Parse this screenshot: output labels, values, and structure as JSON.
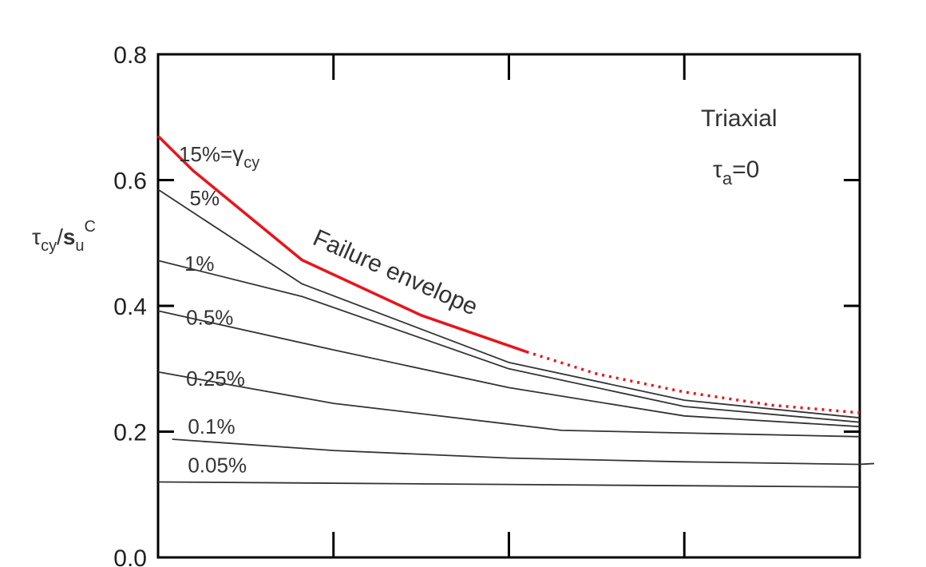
{
  "chart_data": {
    "type": "line",
    "title": "",
    "ylim": [
      0.0,
      0.8
    ],
    "y_ticks": [
      0.0,
      0.2,
      0.4,
      0.6,
      0.8
    ],
    "y_tick_labels": [
      "0.0",
      "0.2",
      "0.4",
      "0.6",
      "0.8"
    ],
    "xlim": [
      0,
      4
    ],
    "x_ticks_unlabeled": [
      1,
      2,
      3
    ],
    "grid": false,
    "ylabel": {
      "main": "τ",
      "sub": "cy",
      "mid": "/",
      "main2": "s",
      "sub2": "u",
      "sup2": "C"
    },
    "annotations": {
      "triaxial": "Triaxial",
      "tau_a": {
        "main": "τ",
        "sub": "a",
        "rest": "=0"
      },
      "failure_envelope": "Failure envelope",
      "gamma_label": {
        "prefix": "15%=",
        "main": "γ",
        "sub": "cy"
      }
    },
    "colors": {
      "envelope": "#e8141c",
      "curves": "#333333",
      "axes": "#000000"
    },
    "series": [
      {
        "name": "5%",
        "x": [
          0,
          0.82,
          2.0,
          3.0,
          4.0
        ],
        "y": [
          0.585,
          0.435,
          0.31,
          0.25,
          0.222
        ]
      },
      {
        "name": "1%",
        "x": [
          0,
          0.82,
          2.0,
          3.0,
          4.0
        ],
        "y": [
          0.472,
          0.415,
          0.3,
          0.24,
          0.215
        ]
      },
      {
        "name": "0.5%",
        "x": [
          0,
          1.0,
          2.0,
          3.0,
          4.0
        ],
        "y": [
          0.392,
          0.33,
          0.27,
          0.225,
          0.208
        ]
      },
      {
        "name": "0.25%",
        "x": [
          0,
          1.0,
          2.3,
          4.0
        ],
        "y": [
          0.295,
          0.245,
          0.202,
          0.192
        ]
      },
      {
        "name": "0.1%",
        "x": [
          0.08,
          1.0,
          2.0,
          3.0,
          4.0
        ],
        "y": [
          0.188,
          0.17,
          0.158,
          0.152,
          0.148
        ]
      },
      {
        "name": "0.05%",
        "x": [
          0,
          4.0
        ],
        "y": [
          0.12,
          0.112
        ]
      },
      {
        "name": "Failure envelope",
        "x": [
          0,
          0.2,
          0.82,
          1.5,
          2.1
        ],
        "y": [
          0.67,
          0.615,
          0.473,
          0.385,
          0.327
        ],
        "style": "solid"
      },
      {
        "name": "Failure envelope",
        "x": [
          2.1,
          2.5,
          3.0,
          3.5,
          4.0
        ],
        "y": [
          0.327,
          0.292,
          0.263,
          0.242,
          0.23
        ],
        "style": "dotted"
      }
    ]
  }
}
